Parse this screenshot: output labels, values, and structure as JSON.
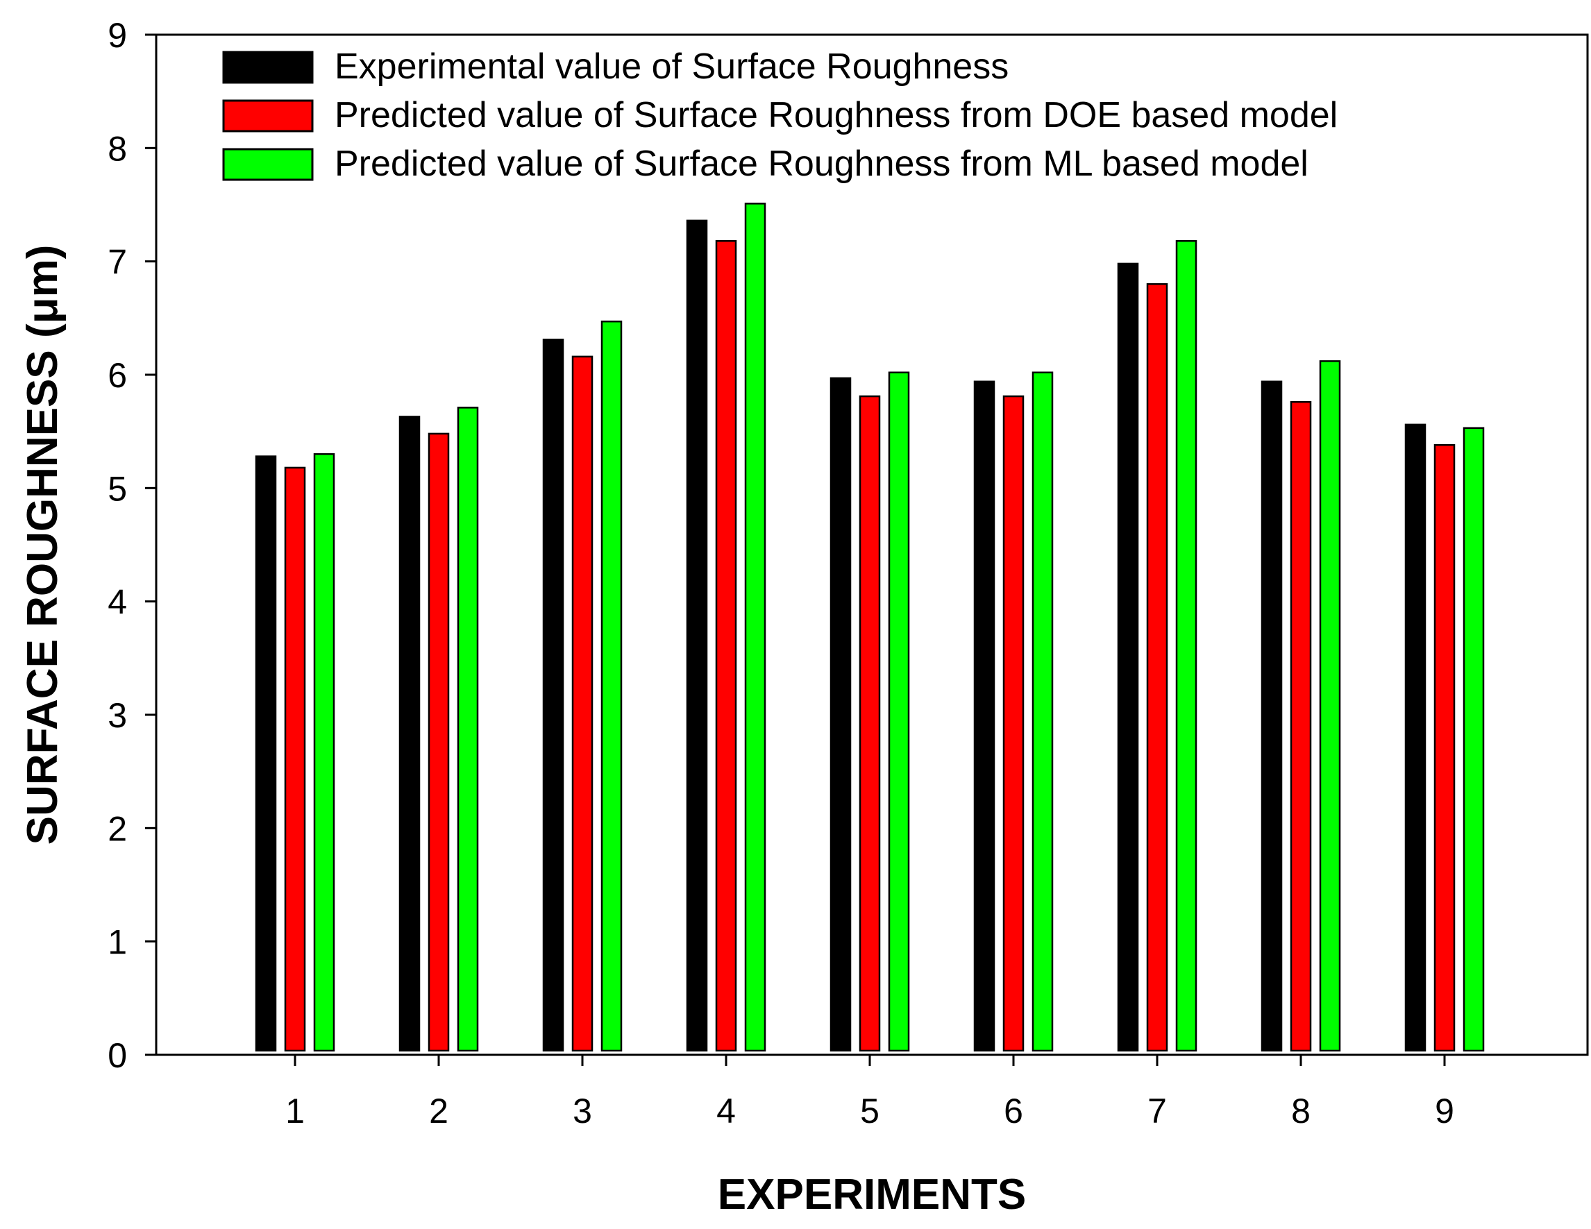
{
  "chart_data": {
    "type": "bar",
    "title": "",
    "xlabel": "EXPERIMENTS",
    "ylabel": "SURFACE ROUGHNESS (μm)",
    "ylim": [
      0,
      9
    ],
    "yticks": [
      "0",
      "1",
      "2",
      "3",
      "4",
      "5",
      "6",
      "7",
      "8",
      "9"
    ],
    "categories": [
      "1",
      "2",
      "3",
      "4",
      "5",
      "6",
      "7",
      "8",
      "9"
    ],
    "legend_position": "top-left",
    "grid": false,
    "series": [
      {
        "name": "Experimental value of Surface Roughness",
        "color": "#000000",
        "values": [
          5.28,
          5.63,
          6.31,
          7.36,
          5.97,
          5.94,
          6.98,
          5.94,
          5.56
        ]
      },
      {
        "name": "Predicted value of Surface Roughness from DOE based model",
        "color": "#ff0000",
        "values": [
          5.18,
          5.48,
          6.16,
          7.18,
          5.81,
          5.81,
          6.8,
          5.76,
          5.38
        ]
      },
      {
        "name": "Predicted value of Surface Roughness from ML based model",
        "color": "#00ff00",
        "values": [
          5.3,
          5.71,
          6.47,
          7.51,
          6.02,
          6.02,
          7.18,
          6.12,
          5.53
        ]
      }
    ]
  }
}
